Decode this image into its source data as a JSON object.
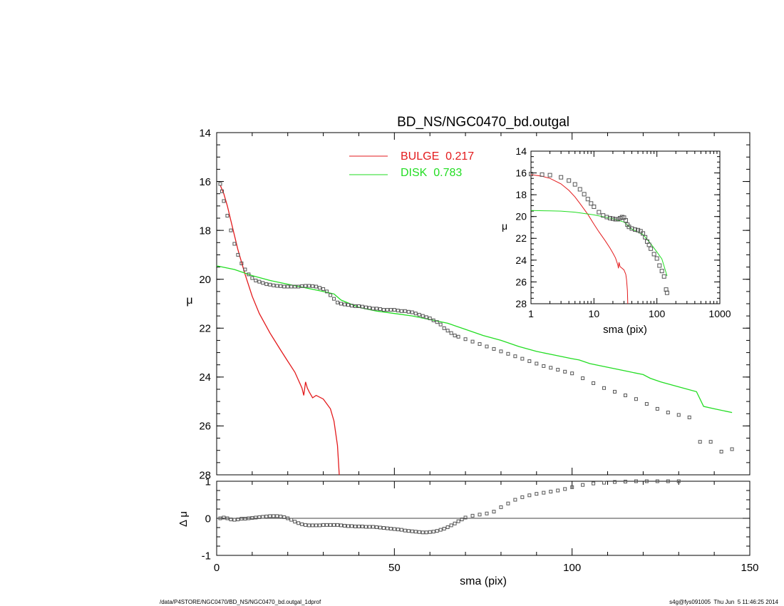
{
  "footer": {
    "left": "/data/P4STORE/NGC0470/BD_NS/NGC0470_bd.outgal_1dprof",
    "right": "s4g@fys091005  Thu Jun  5 11:46:25 2014"
  },
  "colors": {
    "bulge": "#e31a1c",
    "disk": "#22dd22",
    "data": "#555555",
    "axis": "#000000"
  },
  "chart_data": [
    {
      "id": "main",
      "type": "line",
      "title": "BD_NS/NGC0470_bd.outgal",
      "xlabel": "",
      "ylabel": "μ",
      "xlim": [
        0,
        150
      ],
      "ylim": [
        28,
        14
      ],
      "y_inverted": true,
      "xticks": [
        "0",
        "50",
        "100",
        "150"
      ],
      "yticks": [
        "14",
        "16",
        "18",
        "20",
        "22",
        "24",
        "26",
        "28"
      ],
      "legend": {
        "position": "top-center",
        "entries": [
          {
            "label": "BULGE  0.217",
            "series": "bulge"
          },
          {
            "label": "DISK  0.783",
            "series": "disk"
          }
        ]
      },
      "series": [
        {
          "name": "BULGE  0.217",
          "key": "bulge",
          "x": [
            1,
            2,
            3,
            4,
            5,
            6,
            8,
            10,
            12,
            15,
            18,
            20,
            22,
            24,
            24.5,
            25,
            25.5,
            26,
            27,
            28,
            30,
            32,
            33,
            34,
            34.5
          ],
          "y": [
            16.15,
            16.5,
            17.0,
            17.6,
            18.2,
            18.8,
            19.8,
            20.7,
            21.4,
            22.2,
            22.9,
            23.35,
            23.8,
            24.45,
            24.75,
            24.2,
            24.45,
            24.6,
            24.85,
            24.75,
            24.9,
            25.3,
            25.8,
            26.8,
            28.0
          ]
        },
        {
          "name": "DISK  0.783",
          "key": "disk",
          "x": [
            0,
            5,
            10,
            15,
            20,
            25,
            30,
            33,
            35,
            40,
            45,
            50,
            55,
            60,
            65,
            70,
            75,
            80,
            85,
            90,
            95,
            100,
            102,
            105,
            110,
            115,
            120,
            122,
            125,
            130,
            135,
            137,
            140,
            145
          ],
          "y": [
            19.45,
            19.6,
            19.85,
            20.05,
            20.2,
            20.35,
            20.5,
            20.6,
            20.85,
            21.15,
            21.3,
            21.4,
            21.5,
            21.65,
            21.8,
            22.05,
            22.3,
            22.5,
            22.75,
            22.95,
            23.1,
            23.25,
            23.3,
            23.45,
            23.6,
            23.75,
            23.9,
            24.05,
            24.2,
            24.4,
            24.6,
            25.2,
            25.3,
            25.45
          ]
        },
        {
          "name": "",
          "key": "data",
          "type": "scatter",
          "x": [
            1,
            1.5,
            2,
            3,
            4,
            5,
            6,
            7,
            8,
            9,
            10,
            11,
            12,
            13,
            14,
            15,
            16,
            17,
            18,
            19,
            20,
            21,
            22,
            23,
            24,
            25,
            26,
            27,
            28,
            29,
            30,
            31,
            32,
            33,
            34,
            35,
            36,
            37,
            38,
            39,
            40,
            41,
            42,
            43,
            44,
            45,
            46,
            47,
            48,
            49,
            50,
            51,
            52,
            53,
            54,
            55,
            56,
            57,
            58,
            59,
            60,
            61,
            62,
            63,
            64,
            65,
            66,
            67,
            68,
            70,
            72,
            74,
            76,
            78,
            80,
            82,
            84,
            86,
            88,
            90,
            92,
            94,
            96,
            98,
            100,
            103,
            106,
            109,
            112,
            115,
            118,
            121,
            124,
            127,
            130,
            133,
            136,
            139,
            142,
            145
          ],
          "y": [
            16.1,
            16.4,
            16.8,
            17.4,
            18.0,
            18.55,
            19.0,
            19.35,
            19.6,
            19.8,
            19.95,
            20.05,
            20.1,
            20.15,
            20.2,
            20.22,
            20.25,
            20.27,
            20.28,
            20.3,
            20.3,
            20.3,
            20.3,
            20.3,
            20.28,
            20.27,
            20.27,
            20.28,
            20.3,
            20.35,
            20.4,
            20.5,
            20.65,
            20.8,
            20.95,
            21.0,
            21.03,
            21.05,
            21.08,
            21.1,
            21.1,
            21.12,
            21.15,
            21.17,
            21.2,
            21.2,
            21.22,
            21.25,
            21.25,
            21.25,
            21.25,
            21.28,
            21.3,
            21.3,
            21.33,
            21.35,
            21.4,
            21.45,
            21.5,
            21.55,
            21.6,
            21.68,
            21.75,
            21.85,
            22.0,
            22.1,
            22.2,
            22.3,
            22.35,
            22.45,
            22.55,
            22.65,
            22.75,
            22.85,
            22.95,
            23.05,
            23.15,
            23.25,
            23.35,
            23.45,
            23.55,
            23.62,
            23.7,
            23.78,
            23.85,
            24.05,
            24.25,
            24.45,
            24.6,
            24.75,
            24.9,
            25.1,
            25.3,
            25.45,
            25.55,
            25.65,
            26.65,
            26.65,
            27.05,
            26.95
          ]
        }
      ]
    },
    {
      "id": "residual",
      "type": "scatter",
      "xlabel": "sma (pix)",
      "ylabel": "Δ μ",
      "xlim": [
        0,
        150
      ],
      "ylim": [
        -1,
        1
      ],
      "xticks": [
        "0",
        "50",
        "100",
        "150"
      ],
      "yticks": [
        "1",
        "0",
        "-1"
      ],
      "zero_line": true,
      "series": [
        {
          "name": "",
          "key": "data",
          "x": [
            1,
            2,
            3,
            4,
            5,
            6,
            7,
            8,
            9,
            10,
            11,
            12,
            13,
            14,
            15,
            16,
            17,
            18,
            19,
            20,
            21,
            22,
            23,
            24,
            25,
            26,
            27,
            28,
            29,
            30,
            31,
            32,
            33,
            34,
            35,
            36,
            37,
            38,
            39,
            40,
            41,
            42,
            43,
            44,
            45,
            46,
            47,
            48,
            49,
            50,
            51,
            52,
            53,
            54,
            55,
            56,
            57,
            58,
            59,
            60,
            61,
            62,
            63,
            64,
            65,
            66,
            67,
            68,
            69,
            70,
            72,
            74,
            76,
            78,
            80,
            82,
            84,
            86,
            88,
            90,
            92,
            94,
            96,
            98,
            100,
            103,
            106,
            109,
            112,
            115,
            118,
            121,
            124,
            127,
            130
          ],
          "y": [
            0.0,
            0.02,
            0.0,
            -0.03,
            -0.04,
            -0.03,
            -0.01,
            -0.01,
            0.0,
            0.01,
            0.02,
            0.03,
            0.04,
            0.05,
            0.06,
            0.06,
            0.06,
            0.05,
            0.03,
            0.0,
            -0.04,
            -0.09,
            -0.13,
            -0.16,
            -0.18,
            -0.19,
            -0.19,
            -0.19,
            -0.19,
            -0.18,
            -0.18,
            -0.18,
            -0.18,
            -0.18,
            -0.19,
            -0.2,
            -0.21,
            -0.21,
            -0.22,
            -0.22,
            -0.22,
            -0.23,
            -0.23,
            -0.23,
            -0.24,
            -0.25,
            -0.26,
            -0.27,
            -0.28,
            -0.29,
            -0.3,
            -0.31,
            -0.33,
            -0.34,
            -0.35,
            -0.36,
            -0.37,
            -0.38,
            -0.38,
            -0.37,
            -0.36,
            -0.34,
            -0.31,
            -0.28,
            -0.24,
            -0.19,
            -0.14,
            -0.08,
            -0.03,
            0.02,
            0.07,
            0.1,
            0.13,
            0.18,
            0.3,
            0.4,
            0.5,
            0.57,
            0.62,
            0.66,
            0.69,
            0.72,
            0.75,
            0.79,
            0.84,
            0.9,
            0.94,
            0.96,
            0.98,
            0.99,
            1.0,
            1.0,
            1.0,
            1.0,
            1.0
          ]
        }
      ]
    },
    {
      "id": "inset",
      "type": "line",
      "xlabel": "sma (pix)",
      "ylabel": "μ",
      "xscale": "log",
      "xlim": [
        1,
        1000
      ],
      "ylim": [
        28,
        14
      ],
      "y_inverted": true,
      "xticks": [
        "1",
        "10",
        "100",
        "1000"
      ],
      "yticks": [
        "14",
        "16",
        "18",
        "20",
        "22",
        "24",
        "26",
        "28"
      ],
      "series": [
        {
          "name": "BULGE  0.217",
          "key": "bulge",
          "x": [
            1,
            1.5,
            2,
            3,
            4,
            5,
            6,
            8,
            10,
            12,
            15,
            18,
            20,
            22,
            24,
            24.5,
            25,
            26,
            28,
            30,
            32,
            33,
            34,
            34.5
          ],
          "y": [
            16.15,
            16.3,
            16.5,
            17.0,
            17.6,
            18.2,
            18.8,
            19.8,
            20.7,
            21.4,
            22.2,
            22.9,
            23.35,
            23.8,
            24.45,
            24.75,
            24.2,
            24.6,
            24.75,
            24.9,
            25.3,
            25.8,
            26.8,
            28.0
          ]
        },
        {
          "name": "DISK  0.783",
          "key": "disk",
          "x": [
            1,
            2,
            3,
            5,
            10,
            15,
            20,
            30,
            40,
            60,
            80,
            100,
            120,
            145
          ],
          "y": [
            19.45,
            19.48,
            19.5,
            19.6,
            19.85,
            20.05,
            20.2,
            20.5,
            21.15,
            21.65,
            22.5,
            23.25,
            23.9,
            25.45
          ]
        },
        {
          "name": "",
          "key": "data",
          "type": "scatter",
          "x": [
            1,
            1.5,
            2,
            3,
            4,
            5,
            6,
            7,
            8,
            9,
            10,
            12,
            14,
            16,
            18,
            20,
            22,
            24,
            26,
            28,
            30,
            32,
            34,
            36,
            40,
            45,
            50,
            55,
            60,
            65,
            70,
            75,
            80,
            90,
            100,
            110,
            120,
            130,
            140,
            145
          ],
          "y": [
            16.1,
            16.15,
            16.2,
            16.4,
            16.7,
            17.05,
            17.5,
            17.95,
            18.4,
            18.8,
            19.1,
            19.6,
            19.9,
            20.05,
            20.15,
            20.2,
            20.25,
            20.25,
            20.15,
            20.05,
            20.1,
            20.35,
            20.75,
            20.95,
            21.1,
            21.2,
            21.25,
            21.35,
            21.55,
            21.9,
            22.3,
            22.6,
            22.95,
            23.45,
            23.85,
            24.5,
            25.0,
            25.5,
            26.7,
            27.0
          ]
        }
      ]
    }
  ]
}
